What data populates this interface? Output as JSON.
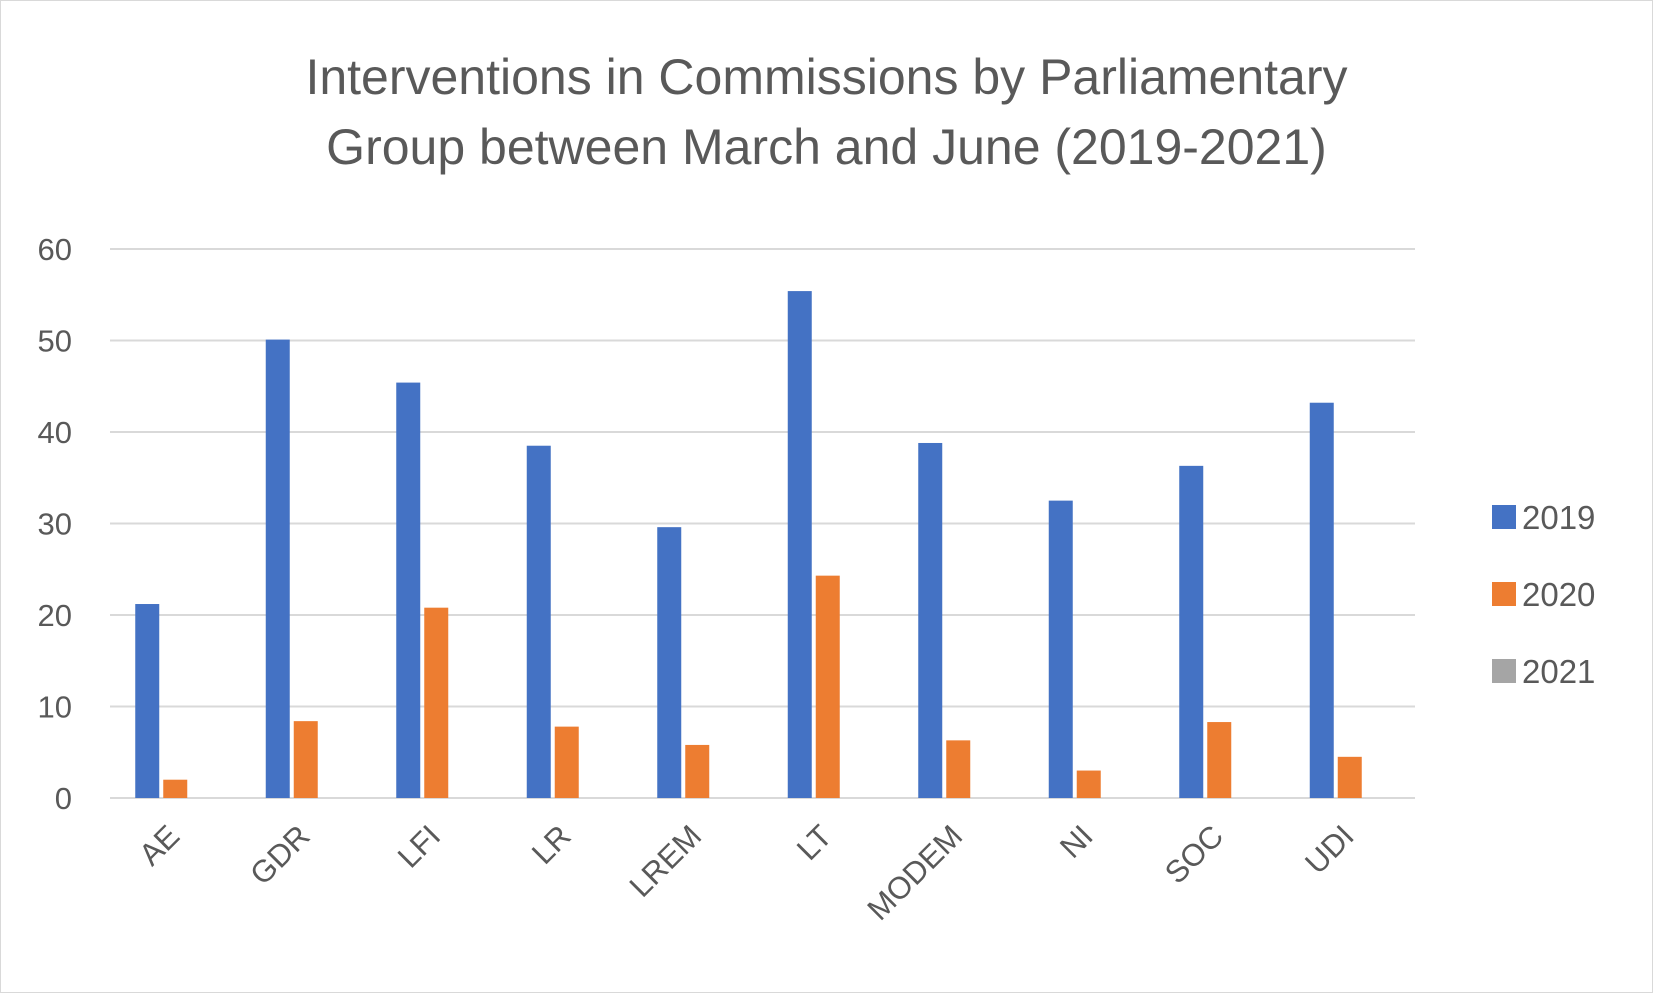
{
  "chart_data": {
    "type": "bar",
    "title_lines": [
      "Interventions in Commissions by Parliamentary",
      "Group between March and June (2019-2021)"
    ],
    "categories": [
      "AE",
      "GDR",
      "LFI",
      "LR",
      "LREM",
      "LT",
      "MODEM",
      "NI",
      "SOC",
      "UDI"
    ],
    "series": [
      {
        "name": "2019",
        "color": "#4472C4",
        "values": [
          21.2,
          50.1,
          45.4,
          38.5,
          29.6,
          55.4,
          38.8,
          32.5,
          36.3,
          43.2
        ]
      },
      {
        "name": "2020",
        "color": "#ED7D31",
        "values": [
          2.0,
          8.4,
          20.8,
          7.8,
          5.8,
          24.3,
          6.3,
          3.0,
          8.3,
          4.5
        ]
      },
      {
        "name": "2021",
        "color": "#A5A5A5",
        "values": [
          0,
          0,
          0,
          0,
          0,
          0,
          0,
          0,
          0,
          0
        ]
      }
    ],
    "y_ticks": [
      0,
      10,
      20,
      30,
      40,
      50,
      60
    ],
    "ylim": [
      0,
      60
    ],
    "grid": true,
    "gridline_color": "#d9d9d9",
    "legend_position": "right",
    "xlabel": "",
    "ylabel": ""
  }
}
